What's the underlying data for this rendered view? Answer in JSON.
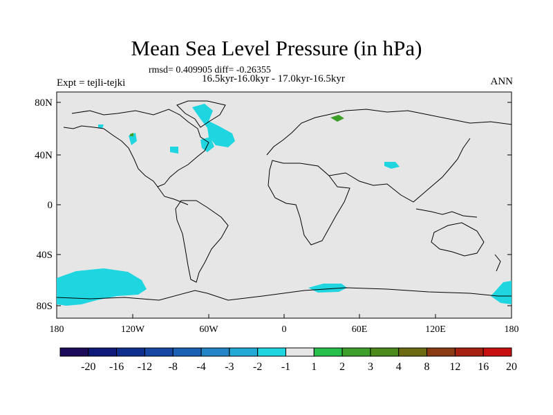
{
  "title": "Mean Sea Level Pressure (in hPa)",
  "stats": "rmsd= 0.409905 diff= -0.26355",
  "periods": "16.5kyr-16.0kyr - 17.0kyr-16.5kyr",
  "experiment": "Expt = tejli-tejki",
  "season": "ANN",
  "lat_labels": [
    "80N",
    "40N",
    "0",
    "40S",
    "80S"
  ],
  "lon_labels": [
    "180",
    "120W",
    "60W",
    "0",
    "60E",
    "120E",
    "180"
  ],
  "colorbar": {
    "levels": [
      "-20",
      "-16",
      "-12",
      "-8",
      "-4",
      "-3",
      "-2",
      "-1",
      "1",
      "2",
      "3",
      "4",
      "8",
      "12",
      "16",
      "20"
    ],
    "colors": [
      "#1c0a5a",
      "#0d1a78",
      "#0f2f8e",
      "#1547a3",
      "#1a61b4",
      "#2384c6",
      "#23a9d6",
      "#1fd6e0",
      "#e6e6e6",
      "#27c04a",
      "#3e9f2b",
      "#4d8a1c",
      "#6c6a10",
      "#8a3b12",
      "#a52210",
      "#c81010"
    ]
  },
  "colors": {
    "land_ocean": "#e6e6e6",
    "negative_anomaly": "#1fd6e0",
    "positive_anomaly": "#3e9f2b"
  }
}
